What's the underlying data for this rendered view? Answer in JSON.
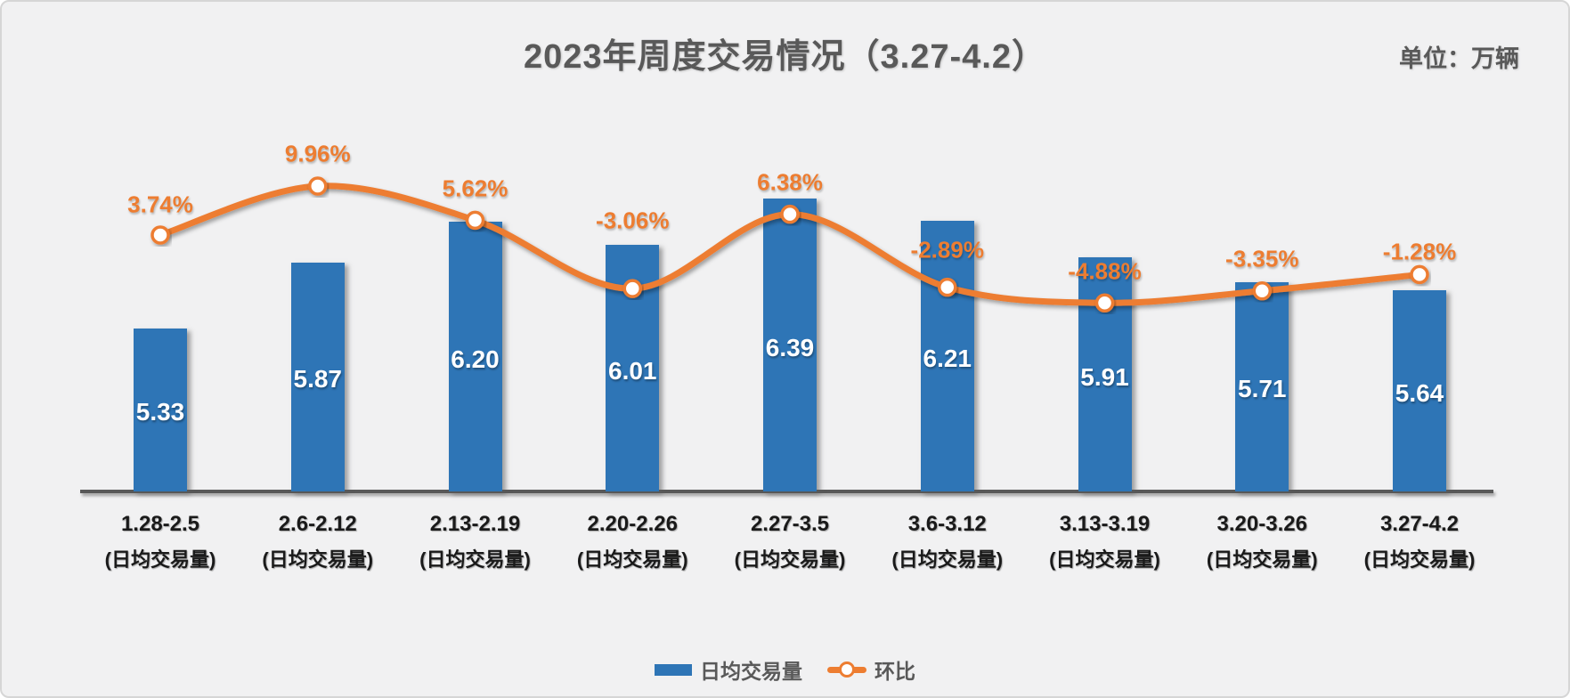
{
  "colors": {
    "bar": "#2E75B6",
    "line": "#ED7D31",
    "title_text": "#595959",
    "axis_line": "#595959",
    "category_text": "#1A1A1A",
    "bar_value_text": "#FFFFFF",
    "background": "#F1F1F2"
  },
  "chart_data": {
    "type": "combo",
    "title": "2023年周度交易情况（3.27-4.2）",
    "unit_label": "单位：万辆",
    "categories": [
      "1.28-2.5",
      "2.6-2.12",
      "2.13-2.19",
      "2.20-2.26",
      "2.27-3.5",
      "3.6-3.12",
      "3.13-3.19",
      "3.20-3.26",
      "3.27-4.2"
    ],
    "category_sublabel": "(日均交易量)",
    "series": [
      {
        "name": "日均交易量",
        "type": "bar",
        "values": [
          "5.33",
          "5.87",
          "6.20",
          "6.01",
          "6.39",
          "6.21",
          "5.91",
          "5.71",
          "5.64"
        ]
      },
      {
        "name": "环比",
        "type": "line",
        "values": [
          "3.74%",
          "9.96%",
          "5.62%",
          "-3.06%",
          "6.38%",
          "-2.89%",
          "-4.88%",
          "-3.35%",
          "-1.28%"
        ]
      }
    ],
    "xlabel": "",
    "ylabel": "",
    "grid": false,
    "legend_position": "bottom",
    "bar_axis_implied_min": 4.0
  }
}
